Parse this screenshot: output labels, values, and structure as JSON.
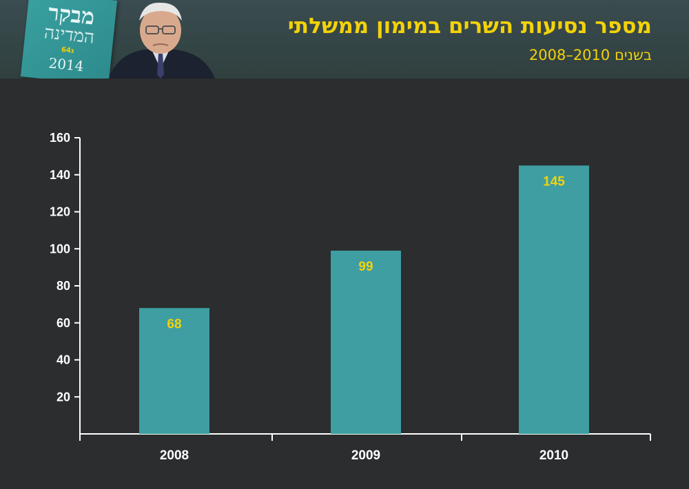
{
  "header": {
    "title": "מספר נסיעות השרים במימון ממשלתי",
    "subtitle": "בשנים 2010–2008",
    "book": {
      "title_line1": "מבקר",
      "title_line2": "המדינה",
      "number": "64ג",
      "year": "2014"
    }
  },
  "colors": {
    "background": "#2b2d2e",
    "bar": "#3e9ea2",
    "value_label": "#f3d20a",
    "title": "#f3d20a"
  },
  "chart_data": {
    "type": "bar",
    "categories": [
      "2008",
      "2009",
      "2010"
    ],
    "values": [
      68,
      99,
      145
    ],
    "ylim": [
      0,
      160
    ],
    "yticks": [
      20,
      40,
      60,
      80,
      100,
      120,
      140,
      160
    ],
    "grid": false,
    "xlabel": "",
    "ylabel": ""
  }
}
